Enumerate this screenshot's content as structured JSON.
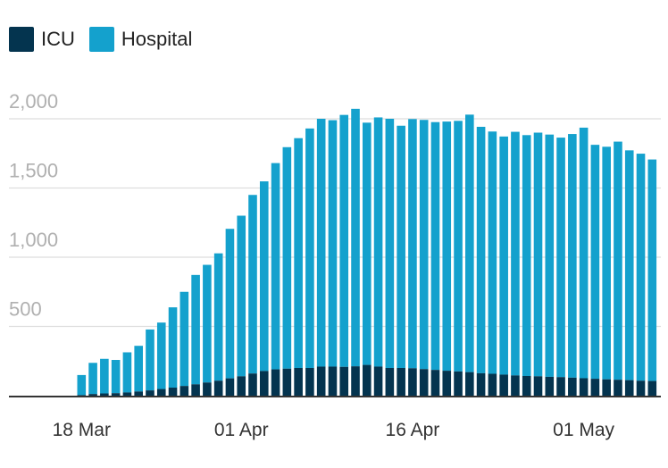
{
  "colors": {
    "icu": "#04344f",
    "hospital": "#14a1cd",
    "grid": "#dedede",
    "axis": "#333333"
  },
  "legend": {
    "icu_label": "ICU",
    "hospital_label": "Hospital"
  },
  "chart_data": {
    "type": "bar",
    "stacked": true,
    "grid": true,
    "legend_position": "top-left",
    "ylim": [
      0,
      2000
    ],
    "yticks": [
      500,
      1000,
      1500,
      2000
    ],
    "ytick_labels": [
      "500",
      "1,000",
      "1,500",
      "2,000"
    ],
    "xlabels": [
      {
        "label": "18 Mar",
        "index": 0
      },
      {
        "label": "01 Apr",
        "index": 14
      },
      {
        "label": "16 Apr",
        "index": 29
      },
      {
        "label": "01 May",
        "index": 44
      }
    ],
    "categories": [
      "18 Mar",
      "19 Mar",
      "20 Mar",
      "21 Mar",
      "22 Mar",
      "23 Mar",
      "24 Mar",
      "25 Mar",
      "26 Mar",
      "27 Mar",
      "28 Mar",
      "29 Mar",
      "30 Mar",
      "31 Mar",
      "01 Apr",
      "02 Apr",
      "03 Apr",
      "04 Apr",
      "05 Apr",
      "06 Apr",
      "07 Apr",
      "08 Apr",
      "09 Apr",
      "10 Apr",
      "11 Apr",
      "12 Apr",
      "13 Apr",
      "14 Apr",
      "15 Apr",
      "16 Apr",
      "17 Apr",
      "18 Apr",
      "19 Apr",
      "20 Apr",
      "21 Apr",
      "22 Apr",
      "23 Apr",
      "24 Apr",
      "25 Apr",
      "26 Apr",
      "27 Apr",
      "28 Apr",
      "29 Apr",
      "30 Apr",
      "01 May",
      "02 May",
      "03 May",
      "04 May",
      "05 May",
      "06 May",
      "07 May"
    ],
    "series": [
      {
        "name": "ICU",
        "values": [
          4,
          12,
          16,
          18,
          23,
          30,
          38,
          48,
          58,
          70,
          82,
          95,
          108,
          125,
          140,
          160,
          178,
          190,
          195,
          200,
          200,
          210,
          210,
          208,
          212,
          222,
          210,
          200,
          200,
          198,
          192,
          186,
          180,
          175,
          170,
          162,
          158,
          152,
          146,
          142,
          140,
          136,
          134,
          130,
          126,
          122,
          118,
          115,
          112,
          108,
          106
        ]
      },
      {
        "name": "Hospital",
        "values": [
          145,
          225,
          250,
          240,
          290,
          330,
          440,
          480,
          580,
          680,
          790,
          850,
          920,
          1080,
          1160,
          1290,
          1370,
          1490,
          1600,
          1660,
          1730,
          1790,
          1780,
          1820,
          1860,
          1750,
          1800,
          1800,
          1750,
          1800,
          1800,
          1790,
          1800,
          1810,
          1860,
          1780,
          1750,
          1720,
          1760,
          1740,
          1760,
          1750,
          1730,
          1760,
          1810,
          1690,
          1680,
          1720,
          1660,
          1640,
          1600
        ]
      }
    ]
  }
}
